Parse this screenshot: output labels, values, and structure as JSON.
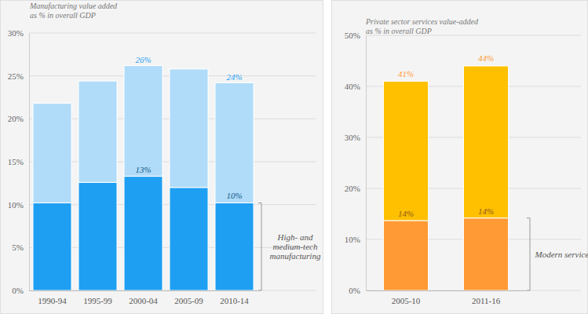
{
  "chart_data": [
    {
      "type": "bar",
      "stacked": true,
      "data_labels": true,
      "grid": true,
      "title": "Manufacturing value added\nas % in overall GDP",
      "categories": [
        "1990-94",
        "1995-99",
        "2000-04",
        "2005-09",
        "2010-14"
      ],
      "series": [
        {
          "name": "High- and\nmedium-tech\nmanufacturing",
          "color": "#1e9ff2",
          "values": [
            10.2,
            12.6,
            13.3,
            12.0,
            10.2
          ],
          "value_labels": [
            null,
            null,
            "13%",
            null,
            "10%"
          ]
        },
        {
          "color": "#b0dcf9",
          "values": [
            11.6,
            11.8,
            12.9,
            13.8,
            14.0
          ]
        }
      ],
      "annotations": [
        {
          "category": "2000-04",
          "y": 26,
          "text": "26%"
        },
        {
          "category": "2010-14",
          "y": 24,
          "text": "24%"
        }
      ],
      "ylim": [
        0,
        30
      ],
      "yticks": [
        {
          "value": 0,
          "label": "0%"
        },
        {
          "value": 5,
          "label": "5%"
        },
        {
          "value": 10,
          "label": "10%"
        },
        {
          "value": 15,
          "label": "15%"
        },
        {
          "value": 20,
          "label": "20%"
        },
        {
          "value": 25,
          "label": "25%"
        },
        {
          "value": 30,
          "label": "30%"
        }
      ]
    },
    {
      "type": "bar",
      "stacked": true,
      "data_labels": true,
      "grid": true,
      "title": "Private sector services value-added\nas % in overall GDP",
      "categories": [
        "2005-10",
        "2011-16"
      ],
      "series": [
        {
          "name": "Modern services",
          "color": "#ff9a35",
          "values": [
            13.7,
            14.2
          ],
          "value_labels": [
            "14%",
            "14%"
          ]
        },
        {
          "color": "#ffc000",
          "values": [
            27.3,
            29.8
          ]
        }
      ],
      "annotations": [
        {
          "category": "2005-10",
          "y": 41,
          "text": "41%"
        },
        {
          "category": "2011-16",
          "y": 44,
          "text": "44%"
        }
      ],
      "ylim": [
        0,
        50
      ],
      "yticks": [
        {
          "value": 0,
          "label": "0%"
        },
        {
          "value": 10,
          "label": "10%"
        },
        {
          "value": 20,
          "label": "20%"
        },
        {
          "value": 30,
          "label": "30%"
        },
        {
          "value": 40,
          "label": "40%"
        },
        {
          "value": 50,
          "label": "50%"
        }
      ]
    }
  ]
}
